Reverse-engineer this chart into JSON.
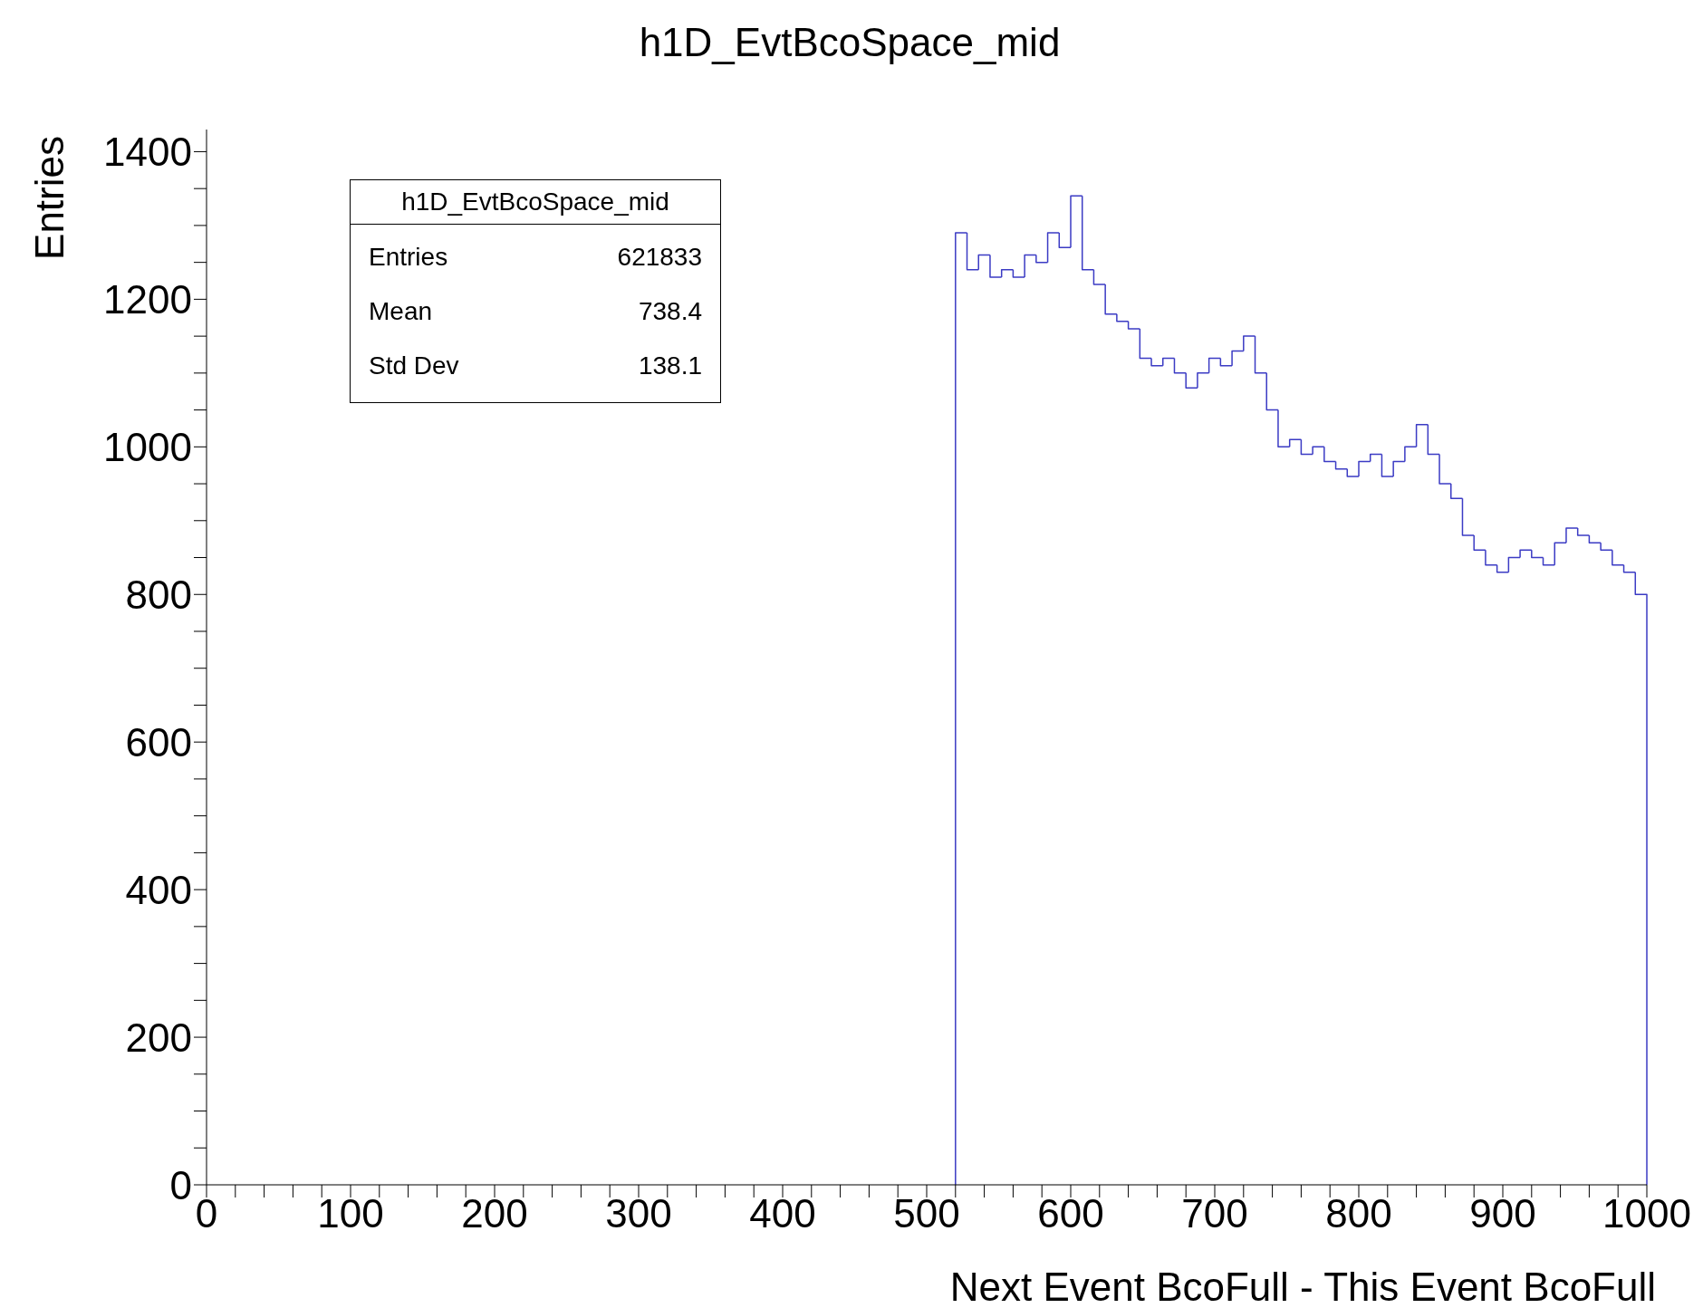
{
  "chart_data": {
    "type": "histogram",
    "title": "h1D_EvtBcoSpace_mid",
    "xlabel": "Next Event BcoFull - This Event BcoFull",
    "ylabel": "Entries",
    "bins": [
      520,
      528,
      536,
      544,
      552,
      560,
      568,
      576,
      584,
      592,
      600,
      608,
      616,
      624,
      632,
      640,
      648,
      656,
      664,
      672,
      680,
      688,
      696,
      704,
      712,
      720,
      728,
      736,
      744,
      752,
      760,
      768,
      776,
      784,
      792,
      800,
      808,
      816,
      824,
      832,
      840,
      848,
      856,
      864,
      872,
      880,
      888,
      896,
      904,
      912,
      920,
      928,
      936,
      944,
      952,
      960,
      968,
      976,
      984,
      992,
      1000
    ],
    "values": [
      1290,
      1240,
      1260,
      1230,
      1240,
      1230,
      1260,
      1250,
      1290,
      1270,
      1340,
      1240,
      1220,
      1180,
      1170,
      1160,
      1120,
      1110,
      1120,
      1100,
      1080,
      1100,
      1120,
      1110,
      1130,
      1150,
      1100,
      1050,
      1000,
      1010,
      990,
      1000,
      980,
      970,
      960,
      980,
      990,
      960,
      980,
      1000,
      1030,
      990,
      950,
      930,
      880,
      860,
      840,
      830,
      850,
      860,
      850,
      840,
      870,
      890,
      880,
      870,
      860,
      840,
      830,
      800
    ],
    "color": "#3b3bc4",
    "xlim": [
      0,
      1000
    ],
    "xticks": [
      0,
      {
        "value": 20,
        "label": null
      },
      {
        "value": 40,
        "label": null
      },
      {
        "value": 60,
        "label": null
      },
      {
        "value": 80,
        "label": null
      },
      100,
      {
        "value": 120,
        "label": null
      },
      {
        "value": 140,
        "label": null
      },
      {
        "value": 160,
        "label": null
      },
      {
        "value": 180,
        "label": null
      },
      200,
      {
        "value": 220,
        "label": null
      },
      {
        "value": 240,
        "label": null
      },
      {
        "value": 260,
        "label": null
      },
      {
        "value": 280,
        "label": null
      },
      300,
      {
        "value": 320,
        "label": null
      },
      {
        "value": 340,
        "label": null
      },
      {
        "value": 360,
        "label": null
      },
      {
        "value": 380,
        "label": null
      },
      400,
      {
        "value": 420,
        "label": null
      },
      {
        "value": 440,
        "label": null
      },
      {
        "value": 460,
        "label": null
      },
      {
        "value": 480,
        "label": null
      },
      500,
      {
        "value": 520,
        "label": null
      },
      {
        "value": 540,
        "label": null
      },
      {
        "value": 560,
        "label": null
      },
      {
        "value": 580,
        "label": null
      },
      600,
      {
        "value": 620,
        "label": null
      },
      {
        "value": 640,
        "label": null
      },
      {
        "value": 660,
        "label": null
      },
      {
        "value": 680,
        "label": null
      },
      700,
      {
        "value": 720,
        "label": null
      },
      {
        "value": 740,
        "label": null
      },
      {
        "value": 760,
        "label": null
      },
      {
        "value": 780,
        "label": null
      },
      800,
      {
        "value": 820,
        "label": null
      },
      {
        "value": 840,
        "label": null
      },
      {
        "value": 860,
        "label": null
      },
      {
        "value": 880,
        "label": null
      },
      900,
      {
        "value": 920,
        "label": null
      },
      {
        "value": 940,
        "label": null
      },
      {
        "value": 960,
        "label": null
      },
      {
        "value": 980,
        "label": null
      },
      1000
    ],
    "ylim": [
      0,
      1430
    ],
    "yticks": [
      0,
      {
        "value": 50,
        "label": null
      },
      {
        "value": 100,
        "label": null
      },
      {
        "value": 150,
        "label": null
      },
      200,
      {
        "value": 250,
        "label": null
      },
      {
        "value": 300,
        "label": null
      },
      {
        "value": 350,
        "label": null
      },
      400,
      {
        "value": 450,
        "label": null
      },
      {
        "value": 500,
        "label": null
      },
      {
        "value": 550,
        "label": null
      },
      600,
      {
        "value": 650,
        "label": null
      },
      {
        "value": 700,
        "label": null
      },
      {
        "value": 750,
        "label": null
      },
      800,
      {
        "value": 850,
        "label": null
      },
      {
        "value": 900,
        "label": null
      },
      {
        "value": 950,
        "label": null
      },
      1000,
      {
        "value": 1050,
        "label": null
      },
      {
        "value": 1100,
        "label": null
      },
      {
        "value": 1150,
        "label": null
      },
      1200,
      {
        "value": 1250,
        "label": null
      },
      {
        "value": 1300,
        "label": null
      },
      {
        "value": 1350,
        "label": null
      },
      1400
    ],
    "annotations": [
      "h1D_EvtBcoSpace_mid",
      "Entries",
      "621833",
      "Mean",
      "738.4",
      "Std Dev",
      "138.1"
    ]
  }
}
